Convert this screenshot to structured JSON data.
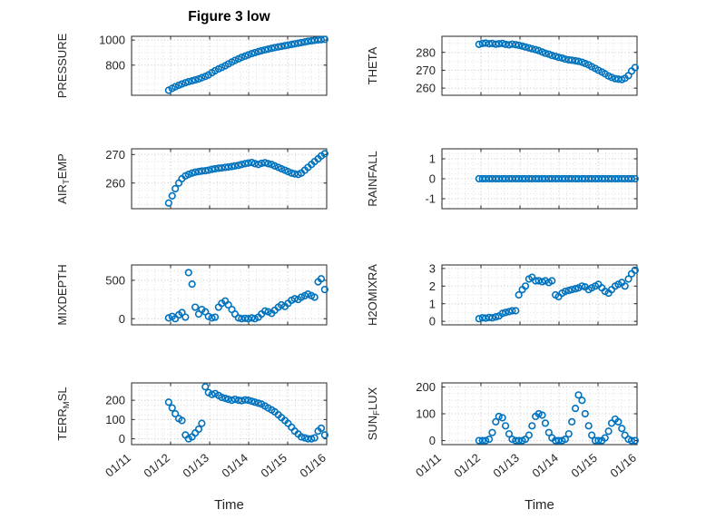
{
  "figure": {
    "title": "Figure 3 low",
    "xlabel": "Time"
  },
  "style": {
    "marker_color": "#0072BD",
    "axis_color": "#262626",
    "grid_minor": "#dedede",
    "grid_major": "#c4c4c4",
    "tick_label_color": "#262626"
  },
  "chart_data": {
    "type": "scatter",
    "title": "Figure 3 low",
    "marker": "o",
    "grid": "on",
    "x_axis": {
      "label": "Time",
      "xlim": [
        11,
        16
      ],
      "ticks": [
        11,
        12,
        13,
        14,
        15,
        16
      ],
      "tick_labels": [
        "01/11",
        "01/12",
        "01/13",
        "01/14",
        "01/15",
        "01/16"
      ]
    },
    "x": [
      11.95,
      12.04,
      12.12,
      12.21,
      12.29,
      12.38,
      12.46,
      12.55,
      12.63,
      12.72,
      12.8,
      12.89,
      12.97,
      13.06,
      13.14,
      13.23,
      13.31,
      13.4,
      13.48,
      13.57,
      13.65,
      13.74,
      13.82,
      13.91,
      13.99,
      14.08,
      14.16,
      14.25,
      14.33,
      14.42,
      14.5,
      14.59,
      14.67,
      14.76,
      14.84,
      14.93,
      15.01,
      15.1,
      15.18,
      15.27,
      15.35,
      15.44,
      15.52,
      15.61,
      15.69,
      15.78,
      15.86,
      15.95
    ],
    "series": [
      {
        "name": "pressure",
        "ylabel": "PRESSURE",
        "row": 0,
        "col": 0,
        "ylim": [
          560,
          1030
        ],
        "yticks": [
          800,
          1000
        ],
        "values": [
          600,
          615,
          628,
          640,
          650,
          660,
          668,
          675,
          682,
          690,
          700,
          710,
          722,
          740,
          755,
          770,
          782,
          795,
          810,
          825,
          838,
          850,
          862,
          872,
          882,
          892,
          900,
          908,
          915,
          922,
          928,
          934,
          940,
          945,
          950,
          955,
          960,
          965,
          970,
          975,
          980,
          985,
          990,
          994,
          998,
          1001,
          1003,
          1006
        ]
      },
      {
        "name": "theta",
        "ylabel": "THETA",
        "row": 0,
        "col": 1,
        "ylim": [
          256,
          289
        ],
        "yticks": [
          260,
          270,
          280
        ],
        "values": [
          284.5,
          285,
          285.2,
          284.8,
          285,
          284.6,
          284.8,
          285,
          284.5,
          284.2,
          284.6,
          284.3,
          284,
          283.5,
          283,
          282.5,
          282,
          281.5,
          281,
          280.2,
          279.5,
          279,
          278.3,
          277.8,
          277.2,
          276.8,
          276.2,
          275.8,
          275.6,
          275.3,
          275,
          274.5,
          273.8,
          273,
          272,
          271,
          270,
          269,
          268,
          266.8,
          266,
          265.3,
          265,
          264.8,
          265.5,
          267,
          269.5,
          271.5
        ]
      },
      {
        "name": "air-temp",
        "ylabel": "AIR_TEMP",
        "row": 1,
        "col": 0,
        "ylim": [
          251,
          272
        ],
        "yticks": [
          260,
          270
        ],
        "values": [
          253,
          255.5,
          258,
          260,
          261.5,
          262.5,
          263,
          263.5,
          263.8,
          264,
          264.2,
          264.3,
          264.5,
          264.8,
          265,
          265.2,
          265.3,
          265.5,
          265.6,
          265.8,
          266,
          266.2,
          266.5,
          266.8,
          267,
          267.2,
          266.8,
          266.5,
          266.9,
          267.1,
          266.8,
          266.5,
          266,
          265.5,
          265,
          264.5,
          264,
          263.5,
          263.2,
          263,
          263.5,
          264.5,
          265.5,
          266.5,
          267.5,
          268.5,
          269.5,
          270.3
        ]
      },
      {
        "name": "rainfall",
        "ylabel": "RAINFALL",
        "row": 1,
        "col": 1,
        "ylim": [
          -1.5,
          1.5
        ],
        "yticks": [
          -1,
          0,
          1
        ],
        "values": [
          0,
          0,
          0,
          0,
          0,
          0,
          0,
          0,
          0,
          0,
          0,
          0,
          0,
          0,
          0,
          0,
          0,
          0,
          0,
          0,
          0,
          0,
          0,
          0,
          0,
          0,
          0,
          0,
          0,
          0,
          0,
          0,
          0,
          0,
          0,
          0,
          0,
          0,
          0,
          0,
          0,
          0,
          0,
          0,
          0,
          0,
          0,
          0
        ]
      },
      {
        "name": "mixdepth",
        "ylabel": "MIXDEPTH",
        "row": 2,
        "col": 0,
        "ylim": [
          -80,
          700
        ],
        "yticks": [
          0,
          500
        ],
        "values": [
          10,
          30,
          0,
          50,
          80,
          20,
          600,
          450,
          150,
          60,
          120,
          90,
          30,
          10,
          20,
          150,
          200,
          230,
          180,
          120,
          60,
          10,
          0,
          5,
          0,
          10,
          0,
          20,
          60,
          100,
          90,
          70,
          110,
          150,
          180,
          160,
          200,
          240,
          260,
          250,
          280,
          300,
          320,
          300,
          280,
          480,
          520,
          380
        ]
      },
      {
        "name": "h2omixra",
        "ylabel": "H2OMIXRA",
        "row": 2,
        "col": 1,
        "ylim": [
          -0.2,
          3.2
        ],
        "yticks": [
          0,
          1,
          2,
          3
        ],
        "values": [
          0.15,
          0.2,
          0.18,
          0.22,
          0.2,
          0.25,
          0.3,
          0.45,
          0.5,
          0.55,
          0.6,
          0.6,
          1.5,
          1.8,
          2.0,
          2.4,
          2.5,
          2.3,
          2.3,
          2.25,
          2.3,
          2.2,
          2.3,
          1.5,
          1.4,
          1.6,
          1.7,
          1.75,
          1.8,
          1.85,
          1.9,
          2.0,
          1.95,
          1.8,
          1.9,
          2.0,
          2.1,
          1.9,
          1.7,
          1.6,
          1.8,
          2.0,
          2.1,
          2.2,
          2.0,
          2.4,
          2.7,
          2.9
        ]
      },
      {
        "name": "terr-msl",
        "ylabel": "TERR_MSL",
        "row": 3,
        "col": 0,
        "ylim": [
          -30,
          290
        ],
        "yticks": [
          0,
          100,
          200
        ],
        "values": [
          190,
          160,
          130,
          105,
          95,
          20,
          0,
          10,
          30,
          50,
          80,
          270,
          240,
          230,
          235,
          225,
          215,
          210,
          205,
          200,
          205,
          200,
          198,
          202,
          200,
          195,
          190,
          185,
          180,
          170,
          160,
          150,
          140,
          125,
          110,
          95,
          80,
          60,
          40,
          25,
          10,
          5,
          0,
          0,
          5,
          40,
          55,
          20
        ]
      },
      {
        "name": "sun-flux",
        "ylabel": "SUN_FLUX",
        "row": 3,
        "col": 1,
        "ylim": [
          -15,
          215
        ],
        "yticks": [
          0,
          100,
          200
        ],
        "values": [
          0,
          0,
          0,
          5,
          30,
          70,
          90,
          85,
          55,
          25,
          5,
          0,
          0,
          0,
          5,
          20,
          55,
          90,
          100,
          95,
          65,
          30,
          10,
          0,
          0,
          0,
          5,
          25,
          70,
          120,
          170,
          150,
          100,
          55,
          20,
          0,
          0,
          0,
          10,
          35,
          65,
          80,
          70,
          45,
          20,
          5,
          0,
          0
        ]
      }
    ]
  }
}
